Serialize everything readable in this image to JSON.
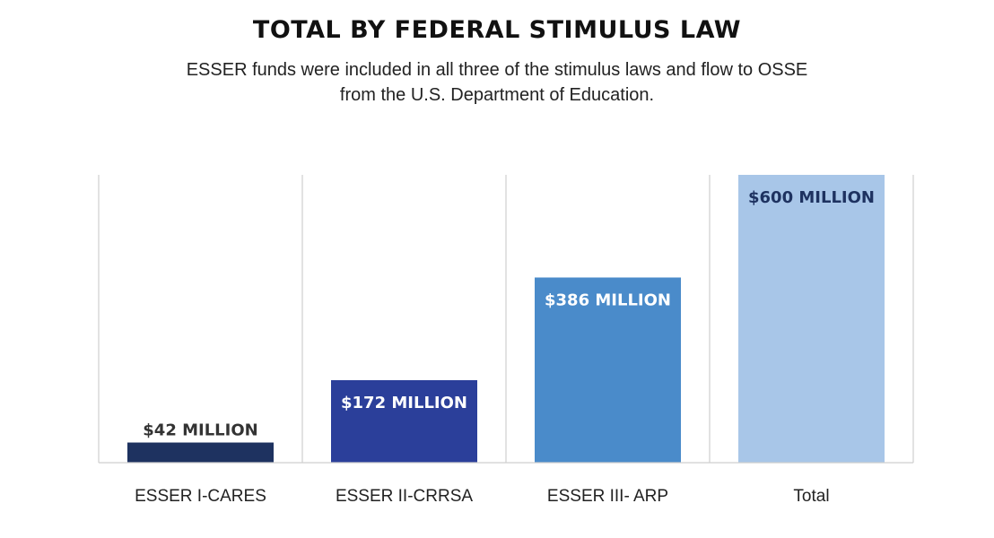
{
  "chart_data": {
    "type": "bar",
    "title": "TOTAL BY FEDERAL STIMULUS LAW",
    "subtitle": "ESSER funds were included in all three of the stimulus laws and flow to OSSE from the U.S. Department of Education.",
    "categories": [
      "ESSER I-CARES",
      "ESSER II-CRRSA",
      "ESSER III- ARP",
      "Total"
    ],
    "values": [
      42,
      172,
      386,
      600
    ],
    "value_labels": [
      "$42 MILLION",
      "$172 MILLION",
      "$386 MILLION",
      "$600 MILLION"
    ],
    "unit": "million USD",
    "bar_colors": [
      "#1e3260",
      "#2b3f9a",
      "#4a8bca",
      "#a8c6e8"
    ],
    "value_label_colors": [
      "#333333",
      "#ffffff",
      "#ffffff",
      "#1e3260"
    ],
    "value_label_position": [
      "above",
      "inside",
      "inside",
      "inside"
    ],
    "ylim": [
      0,
      600
    ],
    "xlabel": "",
    "ylabel": "",
    "grid": "vertical separators between categories",
    "legend": "none"
  }
}
